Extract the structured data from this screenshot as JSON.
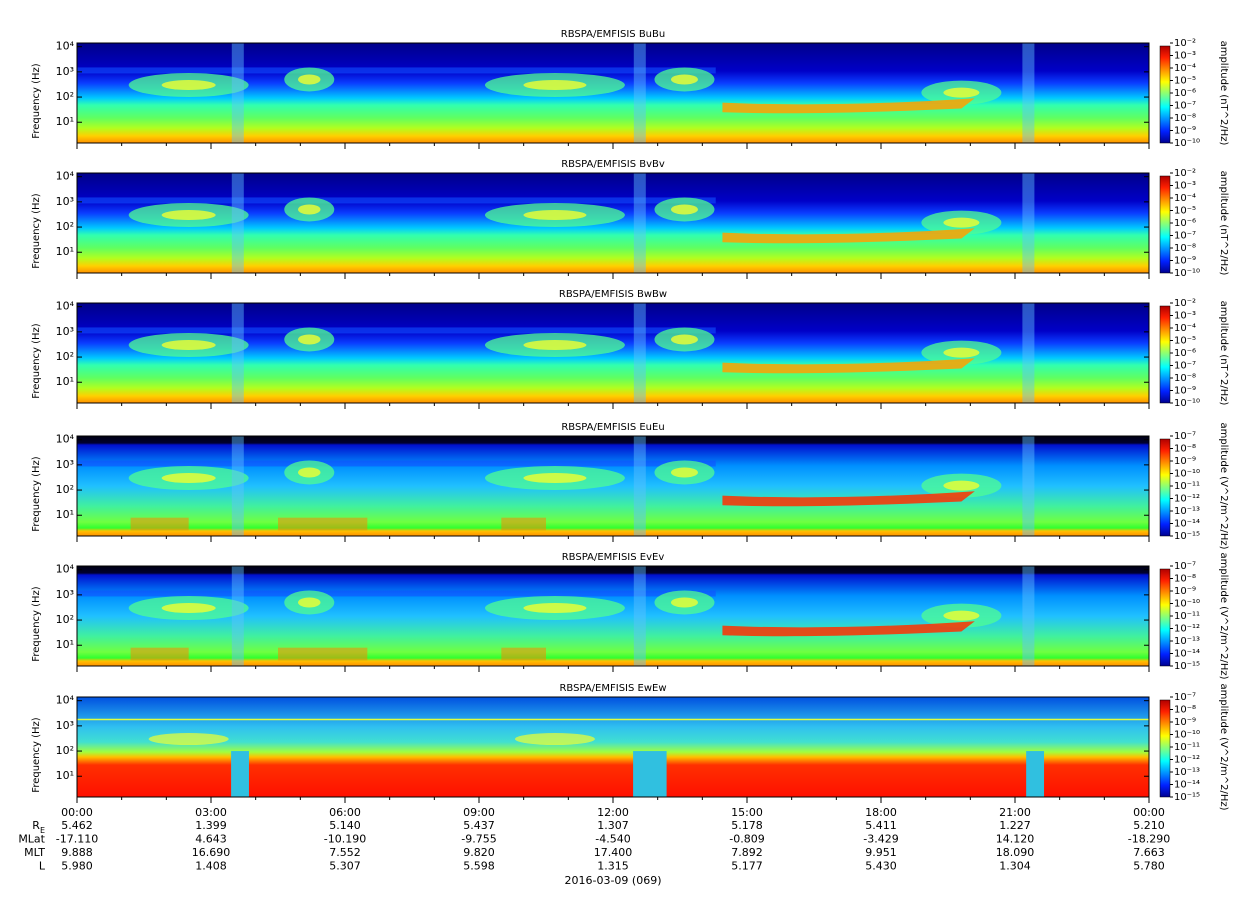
{
  "chart_data": [
    {
      "type": "spectrogram",
      "title": "RBSPA/EMFISIS  BuBu",
      "y_label": "Frequency (Hz)",
      "yscale": "log",
      "ylim": [
        1.5,
        14000
      ],
      "yticks": [
        {
          "value": 10,
          "label": "10¹"
        },
        {
          "value": 100,
          "label": "10²"
        },
        {
          "value": 1000,
          "label": "10³"
        },
        {
          "value": 10000,
          "label": "10⁴"
        }
      ],
      "colorbar": {
        "label": "amplitude (nT^2/Hz)",
        "scale": "log",
        "zlim": [
          1e-10,
          0.01
        ],
        "ticks": [
          {
            "value": 0.01,
            "label": "10⁻²"
          },
          {
            "value": 0.001,
            "label": "10⁻³"
          },
          {
            "value": 0.0001,
            "label": "10⁻⁴"
          },
          {
            "value": 1e-05,
            "label": "10⁻⁵"
          },
          {
            "value": 1e-06,
            "label": "10⁻⁶"
          },
          {
            "value": 1e-07,
            "label": "10⁻⁷"
          },
          {
            "value": 1e-08,
            "label": "10⁻⁸"
          },
          {
            "value": 1e-09,
            "label": "10⁻⁹"
          },
          {
            "value": 1e-10,
            "label": "10⁻¹⁰"
          }
        ]
      }
    },
    {
      "type": "spectrogram",
      "title": "RBSPA/EMFISIS  BvBv",
      "y_label": "Frequency (Hz)",
      "yscale": "log",
      "ylim": [
        1.5,
        14000
      ],
      "yticks": [
        {
          "value": 10,
          "label": "10¹"
        },
        {
          "value": 100,
          "label": "10²"
        },
        {
          "value": 1000,
          "label": "10³"
        },
        {
          "value": 10000,
          "label": "10⁴"
        }
      ],
      "colorbar": {
        "label": "amplitude (nT^2/Hz)",
        "scale": "log",
        "zlim": [
          1e-10,
          0.01
        ],
        "ticks": [
          {
            "value": 0.01,
            "label": "10⁻²"
          },
          {
            "value": 0.001,
            "label": "10⁻³"
          },
          {
            "value": 0.0001,
            "label": "10⁻⁴"
          },
          {
            "value": 1e-05,
            "label": "10⁻⁵"
          },
          {
            "value": 1e-06,
            "label": "10⁻⁶"
          },
          {
            "value": 1e-07,
            "label": "10⁻⁷"
          },
          {
            "value": 1e-08,
            "label": "10⁻⁸"
          },
          {
            "value": 1e-09,
            "label": "10⁻⁹"
          },
          {
            "value": 1e-10,
            "label": "10⁻¹⁰"
          }
        ]
      }
    },
    {
      "type": "spectrogram",
      "title": "RBSPA/EMFISIS  BwBw",
      "y_label": "Frequency (Hz)",
      "yscale": "log",
      "ylim": [
        1.5,
        14000
      ],
      "yticks": [
        {
          "value": 10,
          "label": "10¹"
        },
        {
          "value": 100,
          "label": "10²"
        },
        {
          "value": 1000,
          "label": "10³"
        },
        {
          "value": 10000,
          "label": "10⁴"
        }
      ],
      "colorbar": {
        "label": "amplitude (nT^2/Hz)",
        "scale": "log",
        "zlim": [
          1e-10,
          0.01
        ],
        "ticks": [
          {
            "value": 0.01,
            "label": "10⁻²"
          },
          {
            "value": 0.001,
            "label": "10⁻³"
          },
          {
            "value": 0.0001,
            "label": "10⁻⁴"
          },
          {
            "value": 1e-05,
            "label": "10⁻⁵"
          },
          {
            "value": 1e-06,
            "label": "10⁻⁶"
          },
          {
            "value": 1e-07,
            "label": "10⁻⁷"
          },
          {
            "value": 1e-08,
            "label": "10⁻⁸"
          },
          {
            "value": 1e-09,
            "label": "10⁻⁹"
          },
          {
            "value": 1e-10,
            "label": "10⁻¹⁰"
          }
        ]
      }
    },
    {
      "type": "spectrogram",
      "title": "RBSPA/EMFISIS  EuEu",
      "y_label": "Frequency (Hz)",
      "yscale": "log",
      "ylim": [
        1.5,
        14000
      ],
      "yticks": [
        {
          "value": 10,
          "label": "10¹"
        },
        {
          "value": 100,
          "label": "10²"
        },
        {
          "value": 1000,
          "label": "10³"
        },
        {
          "value": 10000,
          "label": "10⁴"
        }
      ],
      "colorbar": {
        "label": "amplitude (V^2/m^2/Hz)",
        "scale": "log",
        "zlim": [
          1e-15,
          1e-07
        ],
        "ticks": [
          {
            "value": 1e-07,
            "label": "10⁻⁷"
          },
          {
            "value": 1e-08,
            "label": "10⁻⁸"
          },
          {
            "value": 1e-09,
            "label": "10⁻⁹"
          },
          {
            "value": 1e-10,
            "label": "10⁻¹⁰"
          },
          {
            "value": 1e-11,
            "label": "10⁻¹¹"
          },
          {
            "value": 1e-12,
            "label": "10⁻¹²"
          },
          {
            "value": 1e-13,
            "label": "10⁻¹³"
          },
          {
            "value": 1e-14,
            "label": "10⁻¹⁴"
          },
          {
            "value": 1e-15,
            "label": "10⁻¹⁵"
          }
        ]
      }
    },
    {
      "type": "spectrogram",
      "title": "RBSPA/EMFISIS  EvEv",
      "y_label": "Frequency (Hz)",
      "yscale": "log",
      "ylim": [
        1.5,
        14000
      ],
      "yticks": [
        {
          "value": 10,
          "label": "10¹"
        },
        {
          "value": 100,
          "label": "10²"
        },
        {
          "value": 1000,
          "label": "10³"
        },
        {
          "value": 10000,
          "label": "10⁴"
        }
      ],
      "colorbar": {
        "label": "amplitude (V^2/m^2/Hz)",
        "scale": "log",
        "zlim": [
          1e-15,
          1e-07
        ],
        "ticks": [
          {
            "value": 1e-07,
            "label": "10⁻⁷"
          },
          {
            "value": 1e-08,
            "label": "10⁻⁸"
          },
          {
            "value": 1e-09,
            "label": "10⁻⁹"
          },
          {
            "value": 1e-10,
            "label": "10⁻¹⁰"
          },
          {
            "value": 1e-11,
            "label": "10⁻¹¹"
          },
          {
            "value": 1e-12,
            "label": "10⁻¹²"
          },
          {
            "value": 1e-13,
            "label": "10⁻¹³"
          },
          {
            "value": 1e-14,
            "label": "10⁻¹⁴"
          },
          {
            "value": 1e-15,
            "label": "10⁻¹⁵"
          }
        ]
      }
    },
    {
      "type": "spectrogram",
      "title": "RBSPA/EMFISIS  EwEw",
      "y_label": "Frequency (Hz)",
      "yscale": "log",
      "ylim": [
        1.5,
        14000
      ],
      "yticks": [
        {
          "value": 10,
          "label": "10¹"
        },
        {
          "value": 100,
          "label": "10²"
        },
        {
          "value": 1000,
          "label": "10³"
        },
        {
          "value": 10000,
          "label": "10⁴"
        }
      ],
      "colorbar": {
        "label": "amplitude (V^2/m^2/Hz)",
        "scale": "log",
        "zlim": [
          1e-15,
          1e-07
        ],
        "ticks": [
          {
            "value": 1e-07,
            "label": "10⁻⁷"
          },
          {
            "value": 1e-08,
            "label": "10⁻⁸"
          },
          {
            "value": 1e-09,
            "label": "10⁻⁹"
          },
          {
            "value": 1e-10,
            "label": "10⁻¹⁰"
          },
          {
            "value": 1e-11,
            "label": "10⁻¹¹"
          },
          {
            "value": 1e-12,
            "label": "10⁻¹²"
          },
          {
            "value": 1e-13,
            "label": "10⁻¹³"
          },
          {
            "value": 1e-14,
            "label": "10⁻¹⁴"
          },
          {
            "value": 1e-15,
            "label": "10⁻¹⁵"
          }
        ]
      }
    }
  ],
  "time_axis": {
    "xlim": [
      0,
      24
    ],
    "xticks": [
      {
        "value": 0,
        "label": "00:00"
      },
      {
        "value": 3,
        "label": "03:00"
      },
      {
        "value": 6,
        "label": "06:00"
      },
      {
        "value": 9,
        "label": "09:00"
      },
      {
        "value": 12,
        "label": "12:00"
      },
      {
        "value": 15,
        "label": "15:00"
      },
      {
        "value": 18,
        "label": "18:00"
      },
      {
        "value": 21,
        "label": "21:00"
      },
      {
        "value": 24,
        "label": "00:00"
      }
    ],
    "minor_xticks": [
      1,
      2,
      4,
      5,
      7,
      8,
      10,
      11,
      13,
      14,
      16,
      17,
      19,
      20,
      22,
      23
    ],
    "date": "2016-03-09 (069)"
  },
  "ephemeris": {
    "rows": [
      {
        "label": "R",
        "subscript": "E",
        "values": [
          "5.462",
          "1.399",
          "5.140",
          "5.437",
          "1.307",
          "5.178",
          "5.411",
          "1.227",
          "5.210"
        ]
      },
      {
        "label": "MLat",
        "values": [
          "-17.110",
          "4.643",
          "-10.190",
          "-9.755",
          "-4.540",
          "-0.809",
          "-3.429",
          "14.120",
          "-18.290"
        ]
      },
      {
        "label": "MLT",
        "values": [
          "9.888",
          "16.690",
          "7.552",
          "9.820",
          "17.400",
          "7.892",
          "9.951",
          "18.090",
          "7.663"
        ]
      },
      {
        "label": "L",
        "values": [
          "5.980",
          "1.408",
          "5.307",
          "5.598",
          "1.315",
          "5.177",
          "5.430",
          "1.304",
          "5.780"
        ]
      }
    ]
  }
}
